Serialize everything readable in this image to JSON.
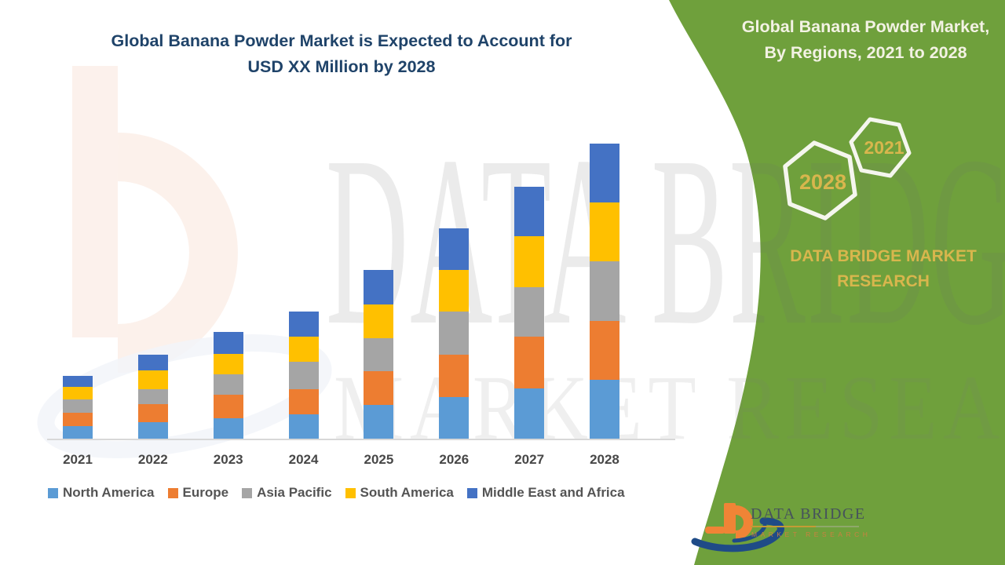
{
  "header": {
    "title_line1": "Global Banana Powder Market is Expected to Account for",
    "title_line2": "USD XX Million by 2028"
  },
  "panel": {
    "title_line1": "Global Banana Powder Market,",
    "title_line2": "By Regions, 2021 to 2028",
    "hex_small_label": "2021",
    "hex_large_label": "2028",
    "brand_line1": "DATA BRIDGE MARKET",
    "brand_line2": "RESEARCH",
    "background_color": "#6FA03C",
    "gold_color": "#D8B64D"
  },
  "watermark": {
    "row1": "DATA BRIDGE",
    "row2": "MARKET RESEARCH"
  },
  "logo": {
    "name": "DATA BRIDGE",
    "tagline": "MARKET RESEARCH"
  },
  "chart_data": {
    "type": "bar",
    "stacked": true,
    "title": "Global Banana Powder Market is Expected to Account for USD XX Million by 2028",
    "xlabel": "",
    "ylabel": "",
    "value_axis_visible": false,
    "gridlines": false,
    "legend_position": "bottom",
    "units_note": "value axis unlabeled (USD XX Million); values are relative units read from bar heights",
    "categories": [
      "2021",
      "2022",
      "2023",
      "2024",
      "2025",
      "2026",
      "2027",
      "2028"
    ],
    "series": [
      {
        "name": "North America",
        "color": "#5B9BD5",
        "values": [
          16,
          21,
          26,
          31,
          43,
          53,
          64,
          75
        ]
      },
      {
        "name": "Europe",
        "color": "#ED7D31",
        "values": [
          17,
          23,
          30,
          32,
          43,
          54,
          66,
          75
        ]
      },
      {
        "name": "Asia Pacific",
        "color": "#A5A5A5",
        "values": [
          17,
          19,
          26,
          35,
          42,
          55,
          63,
          76
        ]
      },
      {
        "name": "South America",
        "color": "#FFC000",
        "values": [
          16,
          24,
          26,
          32,
          43,
          53,
          65,
          75
        ]
      },
      {
        "name": "Middle East and Africa",
        "color": "#4472C4",
        "values": [
          14,
          20,
          28,
          32,
          44,
          53,
          63,
          75
        ]
      }
    ],
    "totals_by_year": [
      80,
      107,
      136,
      162,
      215,
      268,
      321,
      376
    ],
    "ylim": [
      0,
      400
    ],
    "title_color": "#1F4369",
    "axis_label_color": "#474747"
  }
}
